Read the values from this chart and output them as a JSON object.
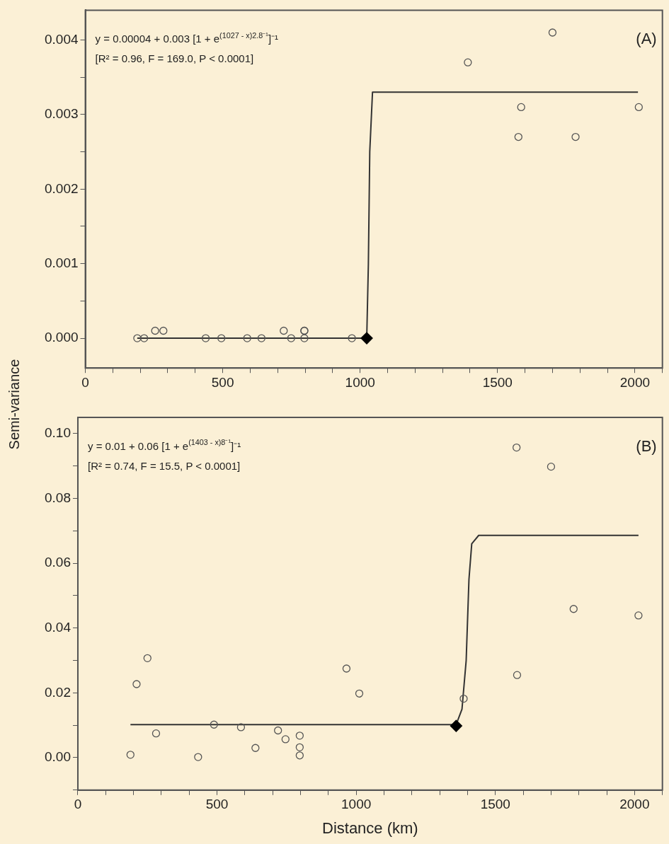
{
  "chart_data": [
    {
      "type": "scatter",
      "ylabel": "Semi-variance",
      "xlim": [
        0,
        2100
      ],
      "ylim": [
        -0.0004,
        0.0044
      ],
      "xticks": [
        0,
        {
          "value": 100,
          "label": null
        },
        {
          "value": 200,
          "label": null
        },
        {
          "value": 300,
          "label": null
        },
        {
          "value": 400,
          "label": null
        },
        500,
        {
          "value": 600,
          "label": null
        },
        {
          "value": 700,
          "label": null
        },
        {
          "value": 800,
          "label": null
        },
        {
          "value": 900,
          "label": null
        },
        1000,
        {
          "value": 1100,
          "label": null
        },
        {
          "value": 1200,
          "label": null
        },
        {
          "value": 1300,
          "label": null
        },
        {
          "value": 1400,
          "label": null
        },
        1500,
        {
          "value": 1600,
          "label": null
        },
        {
          "value": 1700,
          "label": null
        },
        {
          "value": 1800,
          "label": null
        },
        {
          "value": 1900,
          "label": null
        },
        2000,
        {
          "value": 2100,
          "label": null
        }
      ],
      "yticks": [
        {
          "value": 0,
          "label": "0.000"
        },
        {
          "value": 0.0005,
          "label": null
        },
        0.001,
        {
          "value": 0.0015,
          "label": null
        },
        0.002,
        {
          "value": 0.0025,
          "label": null
        },
        0.003,
        {
          "value": 0.0035,
          "label": null
        },
        0.004
      ],
      "grid": false,
      "legend": false,
      "annotations": [
        "y = 0.00004 + 0.003 [1 + e$^{(1027 - x)2.8⁻¹}$]⁻¹",
        "[R² = 0.96, F = 169.0, P < 0.0001]",
        "(A)"
      ],
      "series": [
        {
          "type": "scatter",
          "marker": "circle",
          "color": "#555555",
          "x": [
            189,
            214,
            254,
            284,
            438,
            495,
            589,
            641,
            722,
            749,
            797,
            797,
            797,
            970,
            1392,
            1576,
            1586,
            1700,
            1784,
            2014
          ],
          "values": [
            0.0,
            0.0,
            0.0001,
            0.0001,
            0.0,
            0.0,
            0.0,
            0.0,
            0.0001,
            0.0,
            0.0001,
            0.0001,
            0.0,
            0.0,
            0.0037,
            0.0027,
            0.0031,
            0.0041,
            0.0027,
            0.0031
          ]
        },
        {
          "type": "line",
          "marker": "none",
          "color": "#333333",
          "x": [
            189,
            1024,
            1030,
            1035,
            1045,
            2011
          ],
          "values": [
            0.0,
            0.0,
            0.001,
            0.0025,
            0.0033,
            0.0033
          ]
        },
        {
          "type": "scatter",
          "marker": "diamond",
          "color": "#000000",
          "x": [
            1024
          ],
          "values": [
            0.0
          ]
        }
      ]
    },
    {
      "type": "scatter",
      "xlabel": "Distance (km)",
      "xlim": [
        0,
        2100
      ],
      "ylim": [
        -0.01,
        0.105
      ],
      "xticks": [
        0,
        {
          "value": 100,
          "label": null
        },
        {
          "value": 200,
          "label": null
        },
        {
          "value": 300,
          "label": null
        },
        {
          "value": 400,
          "label": null
        },
        500,
        {
          "value": 600,
          "label": null
        },
        {
          "value": 700,
          "label": null
        },
        {
          "value": 800,
          "label": null
        },
        {
          "value": 900,
          "label": null
        },
        1000,
        {
          "value": 1100,
          "label": null
        },
        {
          "value": 1200,
          "label": null
        },
        {
          "value": 1300,
          "label": null
        },
        {
          "value": 1400,
          "label": null
        },
        1500,
        {
          "value": 1600,
          "label": null
        },
        {
          "value": 1700,
          "label": null
        },
        {
          "value": 1800,
          "label": null
        },
        {
          "value": 1900,
          "label": null
        },
        2000,
        {
          "value": 2100,
          "label": null
        }
      ],
      "yticks": [
        {
          "value": -0.01,
          "label": null
        },
        {
          "value": 0,
          "label": "0.00"
        },
        {
          "value": 0.01,
          "label": null
        },
        {
          "value": 0.02,
          "label": "0.02"
        },
        {
          "value": 0.03,
          "label": null
        },
        {
          "value": 0.04,
          "label": "0.04"
        },
        {
          "value": 0.05,
          "label": null
        },
        {
          "value": 0.06,
          "label": "0.06"
        },
        {
          "value": 0.07,
          "label": null
        },
        {
          "value": 0.08,
          "label": "0.08"
        },
        {
          "value": 0.09,
          "label": null
        },
        {
          "value": 0.1,
          "label": "0.10"
        }
      ],
      "grid": false,
      "legend": false,
      "annotations": [
        "y = 0.01 + 0.06 [1 + e$^{(1403 - x)8⁻¹}$]⁻¹",
        "[R² = 0.74, F = 15.5, P < 0.0001]",
        "(B)"
      ],
      "series": [
        {
          "type": "scatter",
          "marker": "circle",
          "color": "#555555",
          "x": [
            189,
            211,
            250,
            281,
            432,
            489,
            586,
            638,
            719,
            746,
            797,
            797,
            797,
            965,
            1011,
            1386,
            1578,
            1576,
            1700,
            1781,
            2014
          ],
          "values": [
            0.0009,
            0.0227,
            0.0307,
            0.0075,
            0.0002,
            0.0102,
            0.0094,
            0.003,
            0.0084,
            0.0057,
            0.0068,
            0.0032,
            0.0007,
            0.0275,
            0.0198,
            0.0182,
            0.0255,
            0.0957,
            0.0898,
            0.0459,
            0.0439
          ]
        },
        {
          "type": "line",
          "marker": "none",
          "color": "#333333",
          "x": [
            189,
            1359,
            1380,
            1395,
            1405,
            1415,
            1440,
            2014
          ],
          "values": [
            0.0102,
            0.0102,
            0.015,
            0.03,
            0.055,
            0.066,
            0.0686,
            0.0686
          ]
        },
        {
          "type": "scatter",
          "marker": "diamond",
          "color": "#000000",
          "x": [
            1359
          ],
          "values": [
            0.0098
          ]
        }
      ]
    }
  ]
}
